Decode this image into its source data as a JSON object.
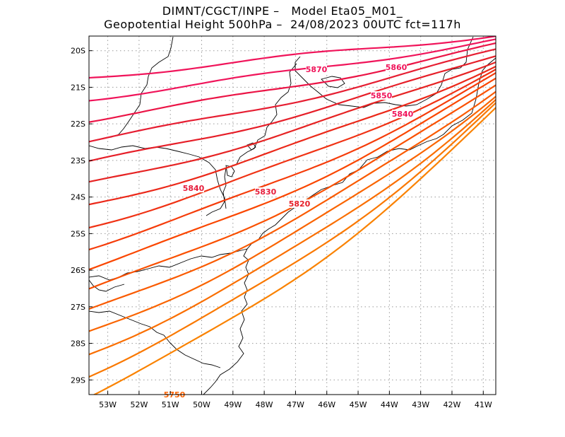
{
  "header": {
    "line1": "DIMNT/CGCT/INPE –   Model Eta05_M01_",
    "line2": "Geopotential Height 500hPa –  24/08/2023 00UTC fct=117h"
  },
  "map": {
    "lat_labels": [
      "20S",
      "21S",
      "22S",
      "23S",
      "24S",
      "25S",
      "26S",
      "27S",
      "28S",
      "29S"
    ],
    "lon_labels": [
      "53W",
      "52W",
      "51W",
      "50W",
      "49W",
      "48W",
      "47W",
      "46W",
      "45W",
      "44W",
      "43W",
      "42W",
      "41W"
    ],
    "lat_range": [
      -29.4,
      -19.6
    ],
    "lon_range": [
      -53.6,
      -40.6
    ],
    "grid": "dotted",
    "contour_unit_step": 10,
    "contour_labels": [
      {
        "text": "5870",
        "color": "#f0145a"
      },
      {
        "text": "5860",
        "color": "#f0145a"
      },
      {
        "text": "5850",
        "color": "#f0145a"
      },
      {
        "text": "5840",
        "color": "#f0145a"
      },
      {
        "text": "5840",
        "color": "#e61e3c"
      },
      {
        "text": "5830",
        "color": "#e61e3c"
      },
      {
        "text": "5820",
        "color": "#e61e28"
      },
      {
        "text": "5750",
        "color": "#ff6400"
      }
    ],
    "contour_colors": [
      "#f0145a",
      "#f0145a",
      "#eb1446",
      "#e61e32",
      "#e61e28",
      "#e62323",
      "#eb2819",
      "#f03214",
      "#f53c0a",
      "#fa4600",
      "#fa5000",
      "#fa5a00",
      "#fa6400",
      "#fa6e00",
      "#fa7800",
      "#fa8200"
    ]
  }
}
